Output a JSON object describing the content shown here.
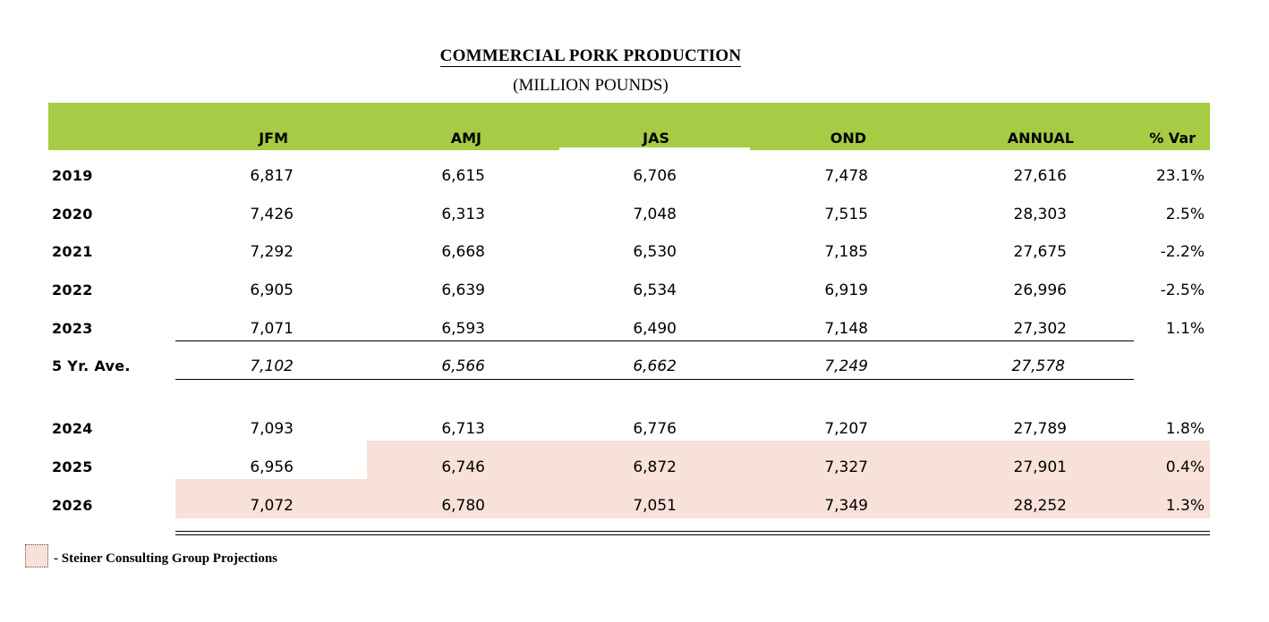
{
  "title": "COMMERCIAL PORK PRODUCTION",
  "subtitle": "(MILLION POUNDS)",
  "columns": [
    "JFM",
    "AMJ",
    "JAS",
    "OND",
    "ANNUAL",
    "% Var"
  ],
  "rows": [
    {
      "label": "2019",
      "values": [
        "6,817",
        "6,615",
        "6,706",
        "7,478",
        "27,616",
        "23.1%"
      ]
    },
    {
      "label": "2020",
      "values": [
        "7,426",
        "6,313",
        "7,048",
        "7,515",
        "28,303",
        "2.5%"
      ]
    },
    {
      "label": "2021",
      "values": [
        "7,292",
        "6,668",
        "6,530",
        "7,185",
        "27,675",
        "-2.2%"
      ]
    },
    {
      "label": "2022",
      "values": [
        "6,905",
        "6,639",
        "6,534",
        "6,919",
        "26,996",
        "-2.5%"
      ]
    },
    {
      "label": "2023",
      "values": [
        "7,071",
        "6,593",
        "6,490",
        "7,148",
        "27,302",
        "1.1%"
      ]
    }
  ],
  "average": {
    "label": "5 Yr. Ave.",
    "values": [
      "7,102",
      "6,566",
      "6,662",
      "7,249",
      "27,578"
    ]
  },
  "forecast_rows": [
    {
      "label": "2024",
      "values": [
        "7,093",
        "6,713",
        "6,776",
        "7,207",
        "27,789",
        "1.8%"
      ]
    },
    {
      "label": "2025",
      "values": [
        "6,956",
        "6,746",
        "6,872",
        "7,327",
        "27,901",
        "0.4%"
      ]
    },
    {
      "label": "2026",
      "values": [
        "7,072",
        "6,780",
        "7,051",
        "7,349",
        "28,252",
        "1.3%"
      ]
    }
  ],
  "legend": {
    "text": "- Steiner Consulting Group Projections"
  },
  "colors": {
    "header": "#a6cb44",
    "projection_shade": "#f7e1d8"
  }
}
